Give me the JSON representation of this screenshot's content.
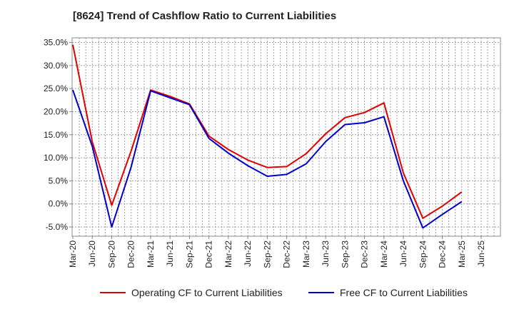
{
  "title": "[8624]  Trend of Cashflow Ratio to Current Liabilities",
  "colors": {
    "operating": "#e00000",
    "free": "#0000cc",
    "grid": "#a0a0a0"
  },
  "chart_data": {
    "type": "line",
    "title": "[8624]  Trend of Cashflow Ratio to Current Liabilities",
    "xlabel": "",
    "ylabel": "",
    "ylim": [
      -7.0,
      36.0
    ],
    "grid": true,
    "legend_position": "bottom",
    "y_ticks": [
      "35.0%",
      "30.0%",
      "25.0%",
      "20.0%",
      "15.0%",
      "10.0%",
      "5.0%",
      "0.0%",
      "-5.0%"
    ],
    "y_tick_values": [
      35,
      30,
      25,
      20,
      15,
      10,
      5,
      0,
      -5
    ],
    "x_ticks": [
      "Mar-20",
      "Jun-20",
      "Sep-20",
      "Dec-20",
      "Mar-21",
      "Jun-21",
      "Sep-21",
      "Dec-21",
      "Mar-22",
      "Jun-22",
      "Sep-22",
      "Dec-22",
      "Mar-23",
      "Jun-23",
      "Sep-23",
      "Dec-23",
      "Mar-24",
      "Jun-24",
      "Sep-24",
      "Dec-24",
      "Mar-25",
      "Jun-25"
    ],
    "x": [
      "Mar-20",
      "Jun-20",
      "Sep-20",
      "Dec-20",
      "Mar-21",
      "Jun-21",
      "Sep-21",
      "Dec-21",
      "Mar-22",
      "Jun-22",
      "Sep-22",
      "Dec-22",
      "Mar-23",
      "Jun-23",
      "Sep-23",
      "Dec-23",
      "Mar-24",
      "Jun-24",
      "Sep-24",
      "Dec-24",
      "Mar-25"
    ],
    "series": [
      {
        "name": "Operating CF to Current Liabilities",
        "values": [
          34.5,
          13.5,
          -0.3,
          11.5,
          24.7,
          23.3,
          21.7,
          14.7,
          11.8,
          9.5,
          7.9,
          8.1,
          10.9,
          15.2,
          18.7,
          19.8,
          21.9,
          6.7,
          -3.1,
          -0.5,
          2.6
        ]
      },
      {
        "name": "Free CF to Current Liabilities",
        "values": [
          24.7,
          12.5,
          -5.0,
          8.0,
          24.5,
          23.0,
          21.5,
          14.2,
          11.0,
          8.3,
          6.0,
          6.4,
          8.7,
          13.5,
          17.2,
          17.6,
          18.9,
          5.0,
          -5.2,
          -2.3,
          0.5
        ]
      }
    ]
  }
}
